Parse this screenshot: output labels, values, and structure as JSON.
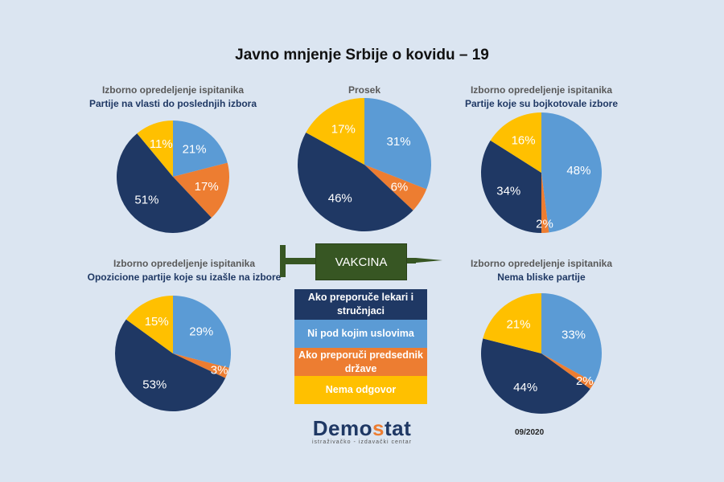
{
  "title": "Javno mnjenje Srbije o kovidu – 19",
  "colors": {
    "background": "#dbe5f1",
    "ni_pod_kojim": "#5b9bd5",
    "predsednik": "#ed7d31",
    "lekari": "#1f3864",
    "nema_odgovor": "#ffc000",
    "syringe": "#375623"
  },
  "chart_data": [
    {
      "type": "pie",
      "title": "Izborno opredeljenje ispitanika",
      "subtitle": "Partije na vlasti do poslednjih izbora",
      "categories": [
        "Ni pod kojim uslovima",
        "Ako preporuči predsednik države",
        "Ako preporuče lekari i stručnjaci",
        "Nema odgovor"
      ],
      "values": [
        21,
        17,
        51,
        11
      ],
      "labels": [
        "21%",
        "17%",
        "51%",
        "11%"
      ]
    },
    {
      "type": "pie",
      "title": "Prosek",
      "subtitle": "",
      "categories": [
        "Ni pod kojim uslovima",
        "Ako preporuči predsednik države",
        "Ako preporuče lekari i stručnjaci",
        "Nema odgovor"
      ],
      "values": [
        31,
        6,
        46,
        17
      ],
      "labels": [
        "31%",
        "6%",
        "46%",
        "17%"
      ]
    },
    {
      "type": "pie",
      "title": "Izborno opredeljenje ispitanika",
      "subtitle": "Partije koje su bojkotovale izbore",
      "categories": [
        "Ni pod kojim uslovima",
        "Ako preporuči predsednik države",
        "Ako preporuče lekari i stručnjaci",
        "Nema odgovor"
      ],
      "values": [
        48,
        2,
        34,
        16
      ],
      "labels": [
        "48%",
        "2%",
        "34%",
        "16%"
      ]
    },
    {
      "type": "pie",
      "title": "Izborno opredeljenje ispitanika",
      "subtitle": "Opozicione partije koje su izašle na izbore",
      "categories": [
        "Ni pod kojim uslovima",
        "Ako preporuči predsednik države",
        "Ako preporuče lekari i stručnjaci",
        "Nema odgovor"
      ],
      "values": [
        29,
        3,
        53,
        15
      ],
      "labels": [
        "29%",
        "3%",
        "53%",
        "15%"
      ]
    },
    {
      "type": "pie",
      "title": "Izborno opredeljenje ispitanika",
      "subtitle": "Nema bliske partije",
      "categories": [
        "Ni pod kojim uslovima",
        "Ako preporuči predsednik države",
        "Ako preporuče lekari i stručnjaci",
        "Nema odgovor"
      ],
      "values": [
        33,
        2,
        44,
        21
      ],
      "labels": [
        "33%",
        "2%",
        "44%",
        "21%"
      ]
    }
  ],
  "syringe_label": "VAKCINA",
  "legend": [
    {
      "label": "Ako preporuče lekari i stručnjaci",
      "color": "#1f3864"
    },
    {
      "label": "Ni pod kojim uslovima",
      "color": "#5b9bd5"
    },
    {
      "label": "Ako preporuči predsednik države",
      "color": "#ed7d31"
    },
    {
      "label": "Nema odgovor",
      "color": "#ffc000"
    }
  ],
  "logo": {
    "name_a": "Demo",
    "name_s": "s",
    "name_b": "tat",
    "tagline": "istraživačko - izdavački centar"
  },
  "date": "09/2020"
}
